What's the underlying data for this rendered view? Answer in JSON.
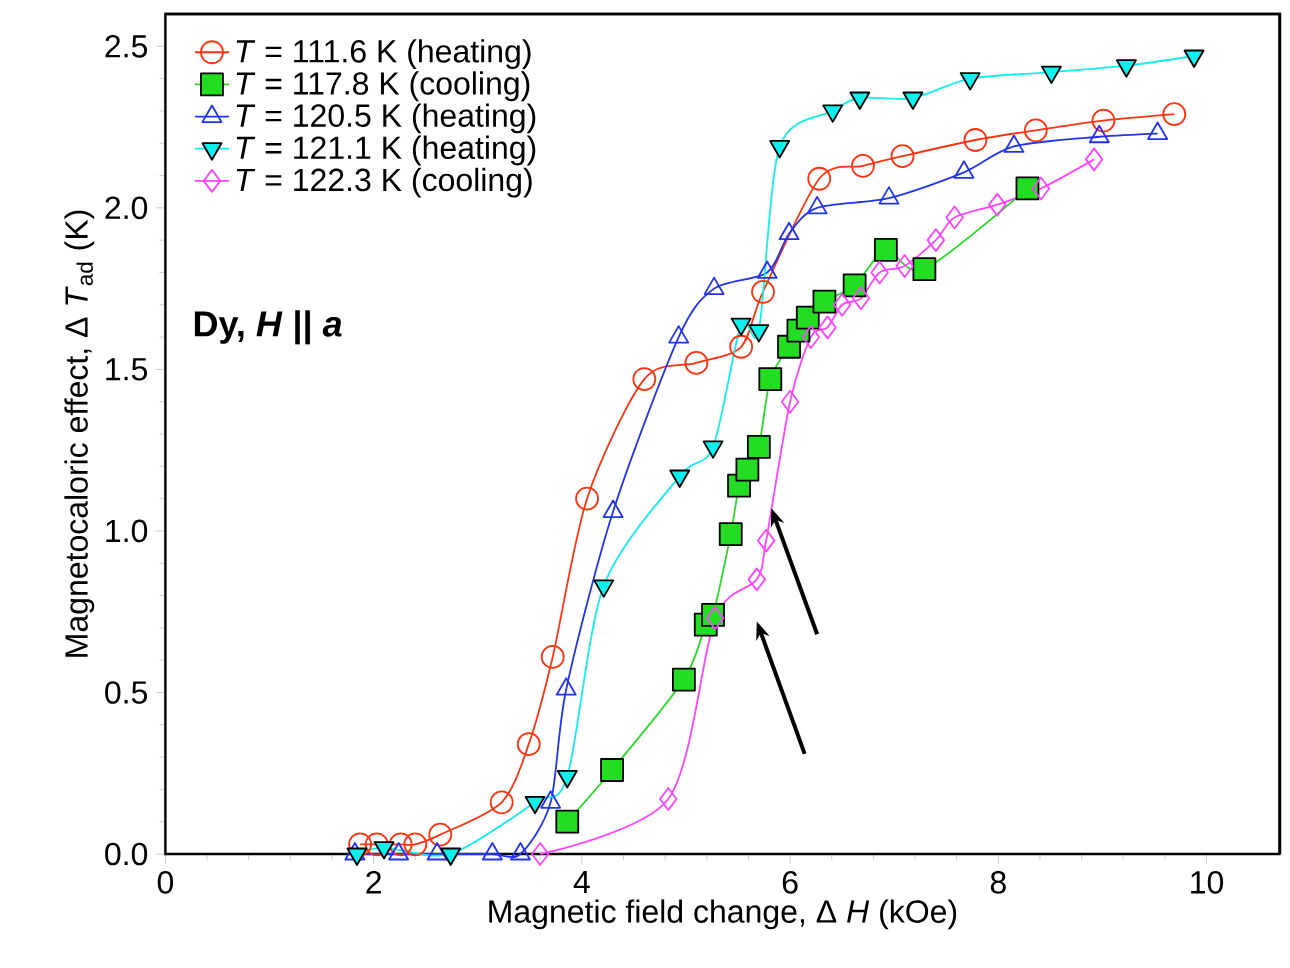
{
  "chart_data": {
    "type": "line",
    "xlabel": "Magnetic field change, Δ *H* (kOe)",
    "ylabel": "Magnetocaloric effect, Δ *T*$_{ad}$ (K)",
    "xlim": [
      0,
      10.7
    ],
    "ylim": [
      0,
      2.6
    ],
    "xticks": [
      0,
      2,
      4,
      6,
      8,
      10
    ],
    "yticks": [
      {
        "value": 0,
        "label": "0.0"
      },
      {
        "value": 0.5,
        "label": "0.5"
      },
      {
        "value": 1,
        "label": "1.0"
      },
      {
        "value": 1.5,
        "label": "1.5"
      },
      {
        "value": 2,
        "label": "2.0"
      },
      {
        "value": 2.5,
        "label": "2.5"
      }
    ],
    "legend": "top left",
    "annotations": [
      "Dy, *H* || *a*"
    ],
    "series": [
      {
        "name": "*T* = 111.6 K (heating)",
        "color": "#ff3311",
        "marker": "circle",
        "line_style": "solid",
        "x": [
          1.87,
          2.03,
          2.26,
          2.4,
          2.64,
          3.23,
          3.49,
          3.72,
          4.05,
          4.6,
          5.1,
          5.53,
          5.74,
          6.28,
          6.7,
          7.08,
          7.78,
          8.36,
          9.01,
          9.69
        ],
        "values": [
          0.03,
          0.03,
          0.03,
          0.03,
          0.06,
          0.16,
          0.34,
          0.61,
          1.1,
          1.47,
          1.52,
          1.57,
          1.74,
          2.09,
          2.13,
          2.16,
          2.21,
          2.24,
          2.27,
          2.29
        ]
      },
      {
        "name": "*T* = 117.8 K (cooling)",
        "color": "#22dd22",
        "marker": "square",
        "line_style": "solid",
        "x": [
          3.86,
          4.29,
          4.98,
          5.19,
          5.26,
          5.43,
          5.51,
          5.59,
          5.7,
          5.81,
          5.99,
          6.08,
          6.17,
          6.33,
          6.62,
          6.92,
          7.29,
          8.28
        ],
        "values": [
          0.1,
          0.26,
          0.54,
          0.71,
          0.74,
          0.99,
          1.14,
          1.19,
          1.26,
          1.47,
          1.57,
          1.62,
          1.66,
          1.71,
          1.76,
          1.87,
          1.81,
          2.06
        ]
      },
      {
        "name": "*T* = 120.5 K (heating)",
        "color": "#2233ee",
        "marker": "triangle",
        "line_style": "solid",
        "x": [
          1.82,
          2.24,
          2.61,
          3.14,
          3.41,
          3.7,
          3.85,
          4.3,
          4.93,
          5.27,
          5.78,
          5.99,
          6.26,
          6.95,
          7.67,
          8.15,
          8.97,
          9.53
        ],
        "values": [
          0,
          0,
          0,
          0,
          0,
          0.16,
          0.51,
          1.06,
          1.6,
          1.75,
          1.8,
          1.92,
          2.0,
          2.03,
          2.11,
          2.19,
          2.22,
          2.23
        ]
      },
      {
        "name": "*T* = 121.1 K (heating)",
        "color": "#11eeee",
        "marker": "triangle-down",
        "line_style": "solid",
        "x": [
          1.84,
          2.1,
          2.74,
          3.55,
          3.86,
          4.21,
          4.94,
          5.26,
          5.53,
          5.7,
          5.9,
          6.41,
          6.67,
          7.18,
          7.73,
          8.51,
          9.23,
          9.88
        ],
        "values": [
          0,
          0.02,
          0,
          0.16,
          0.24,
          0.83,
          1.17,
          1.26,
          1.64,
          1.62,
          2.19,
          2.3,
          2.34,
          2.34,
          2.4,
          2.42,
          2.44,
          2.47
        ]
      },
      {
        "name": "*T* = 122.3 K (cooling)",
        "color": "#ff44ff",
        "marker": "diamond",
        "line_style": "solid",
        "x": [
          3.6,
          4.83,
          5.28,
          5.68,
          5.77,
          6.0,
          6.2,
          6.36,
          6.5,
          6.68,
          6.86,
          7.1,
          7.4,
          7.58,
          7.99,
          8.41,
          8.92
        ],
        "values": [
          0,
          0.17,
          0.73,
          0.85,
          0.97,
          1.4,
          1.6,
          1.63,
          1.7,
          1.72,
          1.8,
          1.82,
          1.9,
          1.97,
          2.01,
          2.06,
          2.15
        ]
      }
    ]
  }
}
